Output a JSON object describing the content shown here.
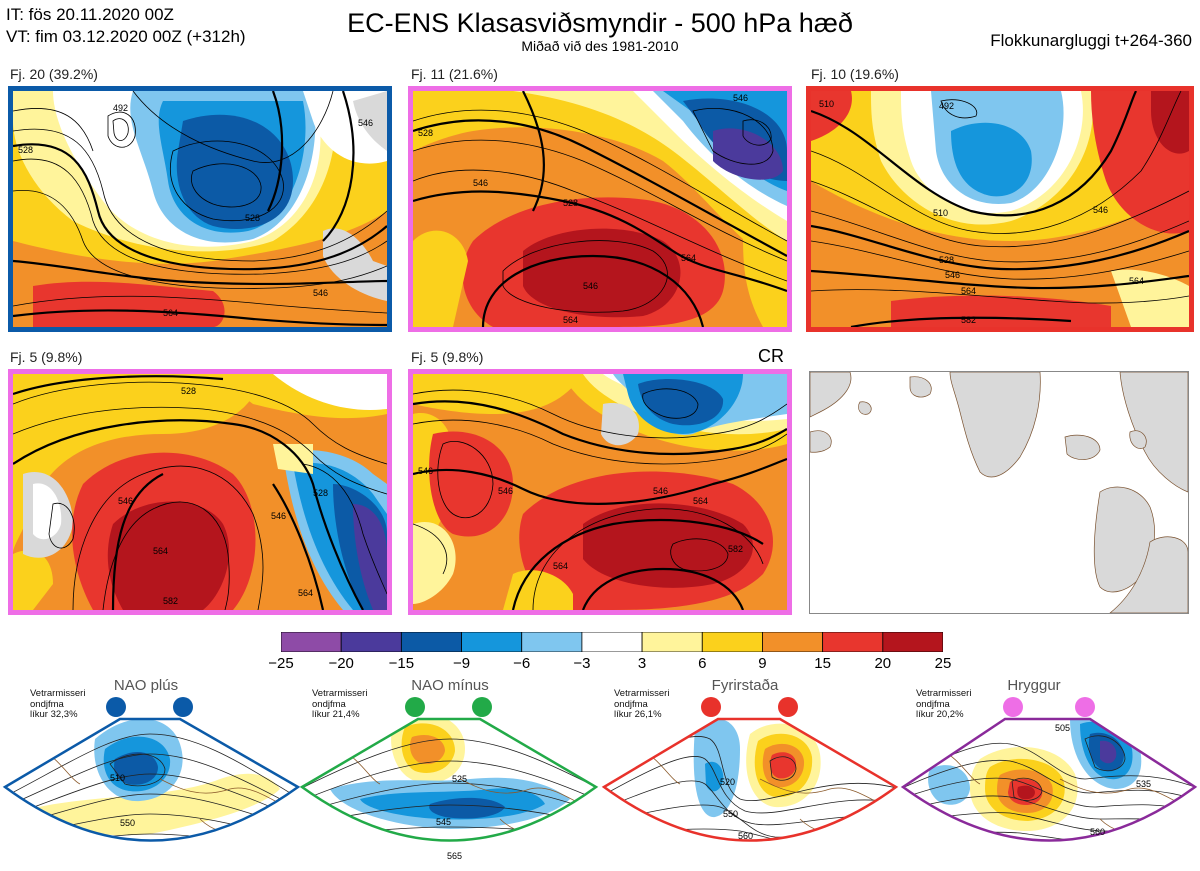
{
  "header": {
    "it_line": "IT: fös 20.11.2020 00Z",
    "vt_line": "VT: fim 03.12.2020 00Z  (+312h)",
    "title": "EC-ENS Klasasviðsmyndir - 500 hPa hæð",
    "subtitle": "Miðað við des 1981-2010",
    "window_label": "Flokkunargluggi t+264-360"
  },
  "panels": [
    {
      "label": "Fj. 20 (39.2%)",
      "frame_color": "#0b5aa8",
      "contour_labels": [
        "492",
        "528",
        "528",
        "546",
        "546",
        "564"
      ]
    },
    {
      "label": "Fj. 11 (21.6%)",
      "frame_color": "#ee6ee6",
      "contour_labels": [
        "528",
        "546",
        "528",
        "546",
        "546",
        "564",
        "564"
      ]
    },
    {
      "label": "Fj. 10 (19.6%)",
      "frame_color": "#e8322b",
      "contour_labels": [
        "492",
        "510",
        "510",
        "528",
        "546",
        "546",
        "564",
        "564",
        "582"
      ]
    },
    {
      "label": "Fj. 5 (9.8%)",
      "frame_color": "#ee6ee6",
      "contour_labels": [
        "528",
        "546",
        "528",
        "546",
        "564",
        "564",
        "582"
      ]
    },
    {
      "label": "Fj. 5 (9.8%)",
      "frame_color": "#ee6ee6",
      "corner_tag": "CR",
      "contour_labels": [
        "546",
        "546",
        "546",
        "564",
        "582",
        "564"
      ]
    },
    {
      "label": "",
      "frame_color": "#888888",
      "contour_labels": []
    }
  ],
  "colorbar": {
    "colors": [
      "#8e4ba7",
      "#4b3a9c",
      "#0c5aa6",
      "#1596dc",
      "#7fc6ef",
      "#ffffff",
      "#fff49b",
      "#fbd11c",
      "#f29029",
      "#e8362e",
      "#b4151d"
    ],
    "ticks": [
      "−25",
      "−20",
      "−15",
      "−9",
      "−6",
      "−3",
      "3",
      "6",
      "9",
      "15",
      "20",
      "25"
    ]
  },
  "regimes": [
    {
      "name": "NAO plús",
      "note": [
        "Vetrarmisseri",
        "ondjfma",
        "líkur 32,3%"
      ],
      "color": "#0b5aa8",
      "contour_labels": [
        "510",
        "550"
      ]
    },
    {
      "name": "NAO mínus",
      "note": [
        "Vetrarmisseri",
        "ondjfma",
        "líkur 21,4%"
      ],
      "color": "#22aa48",
      "contour_labels": [
        "525",
        "545",
        "565"
      ]
    },
    {
      "name": "Fyrirstaða",
      "note": [
        "Vetrarmisseri",
        "ondjfma",
        "líkur 26,1%"
      ],
      "color": "#e8322b",
      "contour_labels": [
        "520",
        "550",
        "560"
      ]
    },
    {
      "name": "Hryggur",
      "note": [
        "Vetrarmisseri",
        "ondjfma",
        "líkur 20,2%"
      ],
      "color": "#8a2a9a",
      "dot_color": "#ee6ee6",
      "contour_labels": [
        "505",
        "535",
        "560"
      ]
    }
  ]
}
